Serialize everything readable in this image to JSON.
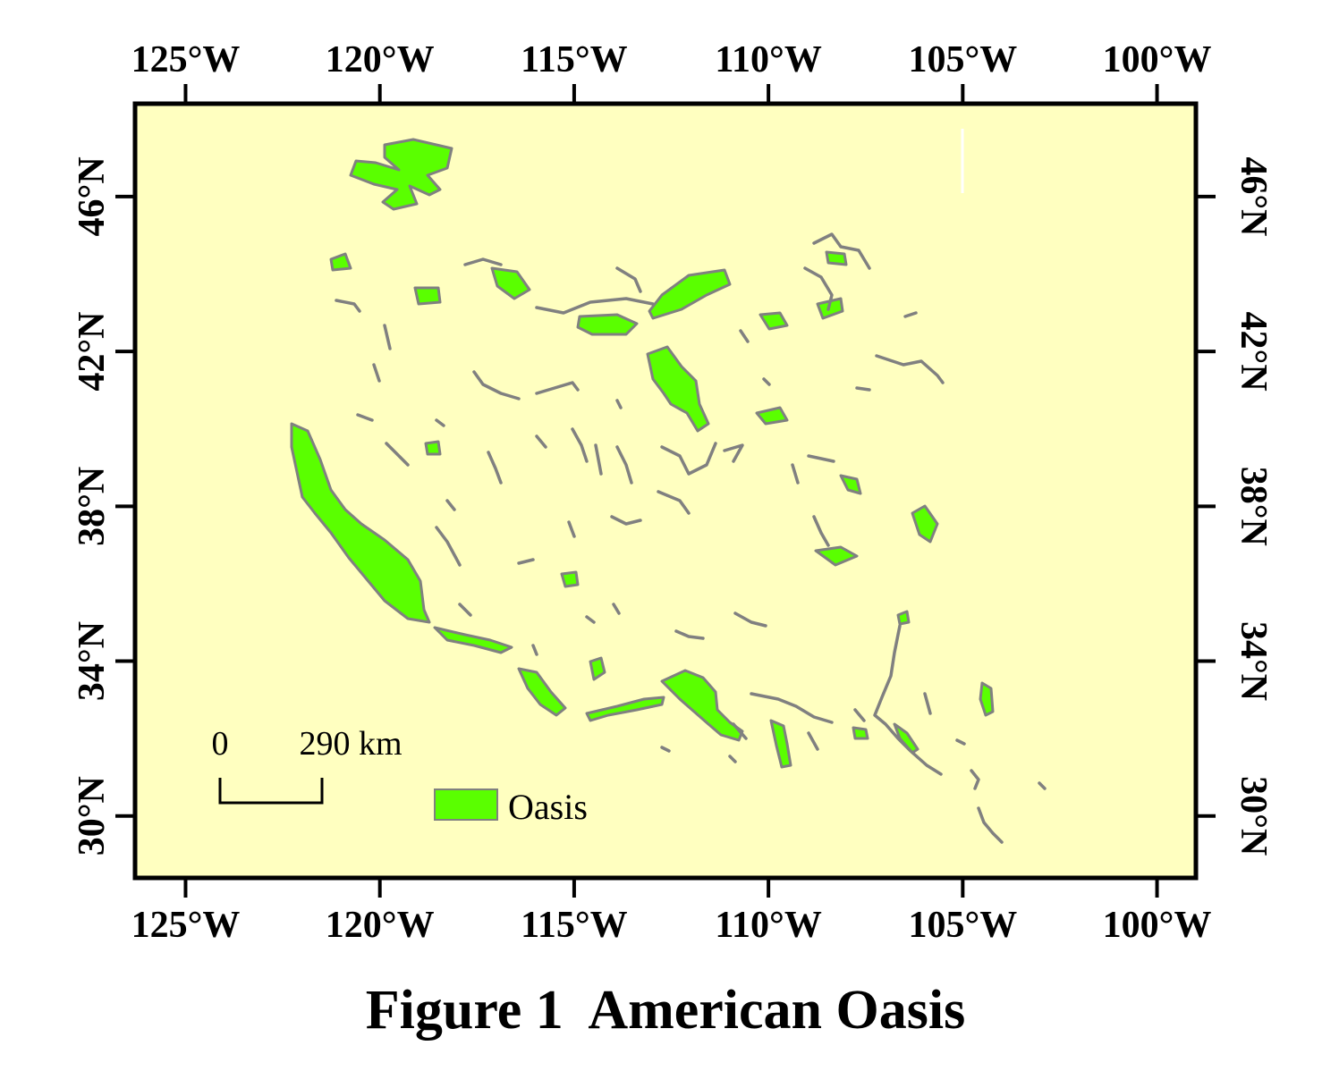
{
  "map": {
    "title": "Figure 1  American Oasis",
    "colors": {
      "background": "#ffffc0",
      "oasis": "#5aff00",
      "oasis_outline": "#808080",
      "frame": "#000000"
    },
    "extent": {
      "lon_min": -126.3,
      "lon_max": -99.0,
      "lat_min": 28.4,
      "lat_max": 48.4
    },
    "lon_ticks": [
      {
        "value": -125,
        "label": "125°W"
      },
      {
        "value": -120,
        "label": "120°W"
      },
      {
        "value": -115,
        "label": "115°W"
      },
      {
        "value": -110,
        "label": "110°W"
      },
      {
        "value": -105,
        "label": "105°W"
      },
      {
        "value": -100,
        "label": "100°W"
      }
    ],
    "lat_ticks": [
      {
        "value": 46,
        "label": "46°N"
      },
      {
        "value": 42,
        "label": "42°N"
      },
      {
        "value": 38,
        "label": "38°N"
      },
      {
        "value": 34,
        "label": "34°N"
      },
      {
        "value": 30,
        "label": "30°N"
      }
    ],
    "scale_bar": {
      "start_label": "0",
      "end_label": "290 km"
    },
    "legend": {
      "label": "Oasis",
      "swatch": "oasis"
    }
  }
}
